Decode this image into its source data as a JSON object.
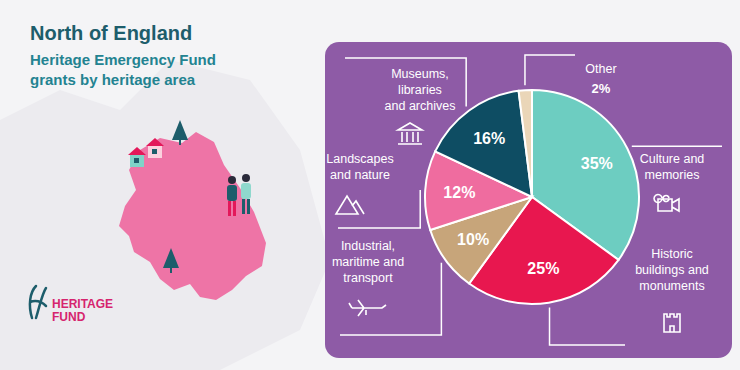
{
  "chart_data": {
    "type": "pie",
    "title": "North of England",
    "subtitle": "Heritage Emergency Fund grants by heritage area",
    "categories": [
      "Culture and memories",
      "Historic buildings and monuments",
      "Industrial, maritime and transport",
      "Landscapes and nature",
      "Museums, libraries and archives",
      "Other"
    ],
    "values": [
      35,
      25,
      10,
      12,
      16,
      2
    ],
    "value_labels": [
      "35%",
      "25%",
      "10%",
      "12%",
      "16%",
      "2%"
    ],
    "colors": [
      "#6dcdc1",
      "#e8174f",
      "#c7a57a",
      "#ef6c9f",
      "#0e4d63",
      "#ead6b8"
    ],
    "data_labels": true
  },
  "logo": [
    "HERITAGE",
    "FUND"
  ]
}
